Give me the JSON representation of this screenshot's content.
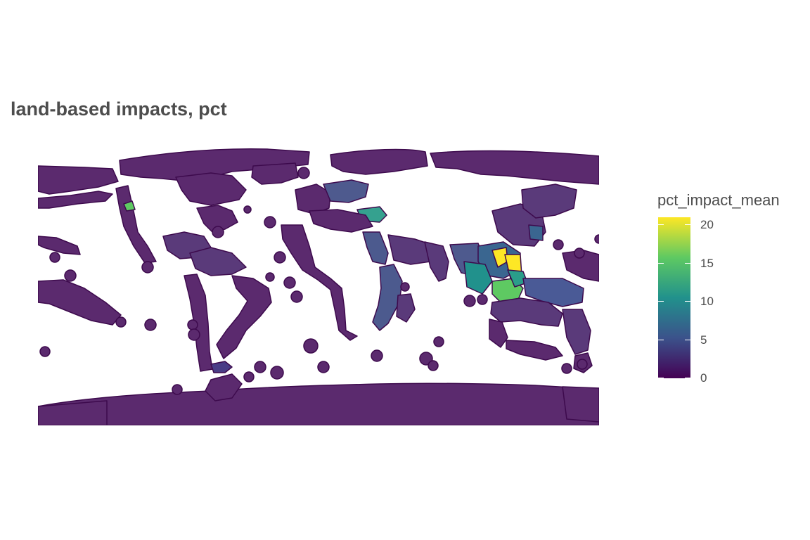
{
  "title": "land-based impacts, pct",
  "legend": {
    "title": "pct_impact_mean",
    "ticks": [
      {
        "label": "20",
        "value": 20
      },
      {
        "label": "15",
        "value": 15
      },
      {
        "label": "10",
        "value": 10
      },
      {
        "label": "5",
        "value": 5
      },
      {
        "label": "0",
        "value": 0
      }
    ],
    "min": 0,
    "max": 21,
    "colors": [
      "#440154",
      "#3b528b",
      "#21918c",
      "#5ec962",
      "#fde725"
    ]
  },
  "map": {
    "projection": "equirectangular",
    "fill_default": "#5a2d6e",
    "border_color": "#440154"
  }
}
